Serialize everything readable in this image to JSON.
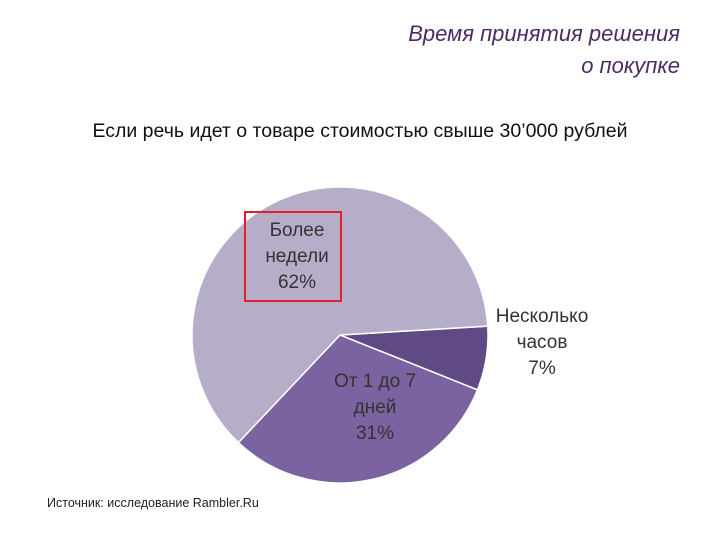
{
  "title_lines": [
    "Время принятия решения",
    "о покупке"
  ],
  "subtitle": "Если речь идет о товаре стоимостью свыше 30’000 рублей",
  "source": "Источник: исследование Rambler.Ru",
  "chart_data": {
    "type": "pie",
    "slices": [
      {
        "label_lines": [
          "Более",
          "недели",
          "62%"
        ],
        "value": 62,
        "color": "#b6aec9",
        "highlighted": true
      },
      {
        "label_lines": [
          "Несколько",
          "часов",
          "7%"
        ],
        "value": 7,
        "color": "#5f4a85"
      },
      {
        "label_lines": [
          "От 1 до 7",
          "дней",
          "31%"
        ],
        "value": 31,
        "color": "#7b62a0"
      }
    ]
  }
}
